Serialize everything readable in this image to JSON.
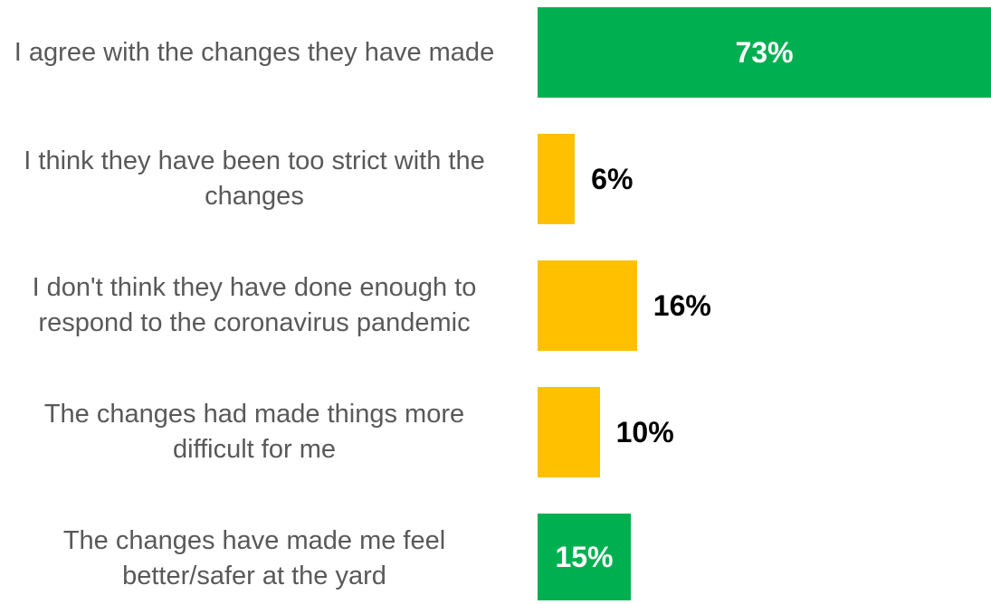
{
  "chart_data": {
    "type": "bar",
    "orientation": "horizontal",
    "categories": [
      "I agree with the changes they have made",
      "I think they have been too strict with the changes",
      "I don't think they have done enough to respond to the coronavirus pandemic",
      "The changes had made things more difficult for me",
      "The changes have made me feel better/safer at the yard"
    ],
    "values": [
      73,
      6,
      16,
      10,
      15
    ],
    "value_labels": [
      "73%",
      "6%",
      "16%",
      "10%",
      "15%"
    ],
    "colors": [
      "#00b050",
      "#ffc000",
      "#ffc000",
      "#ffc000",
      "#00b050"
    ]
  }
}
